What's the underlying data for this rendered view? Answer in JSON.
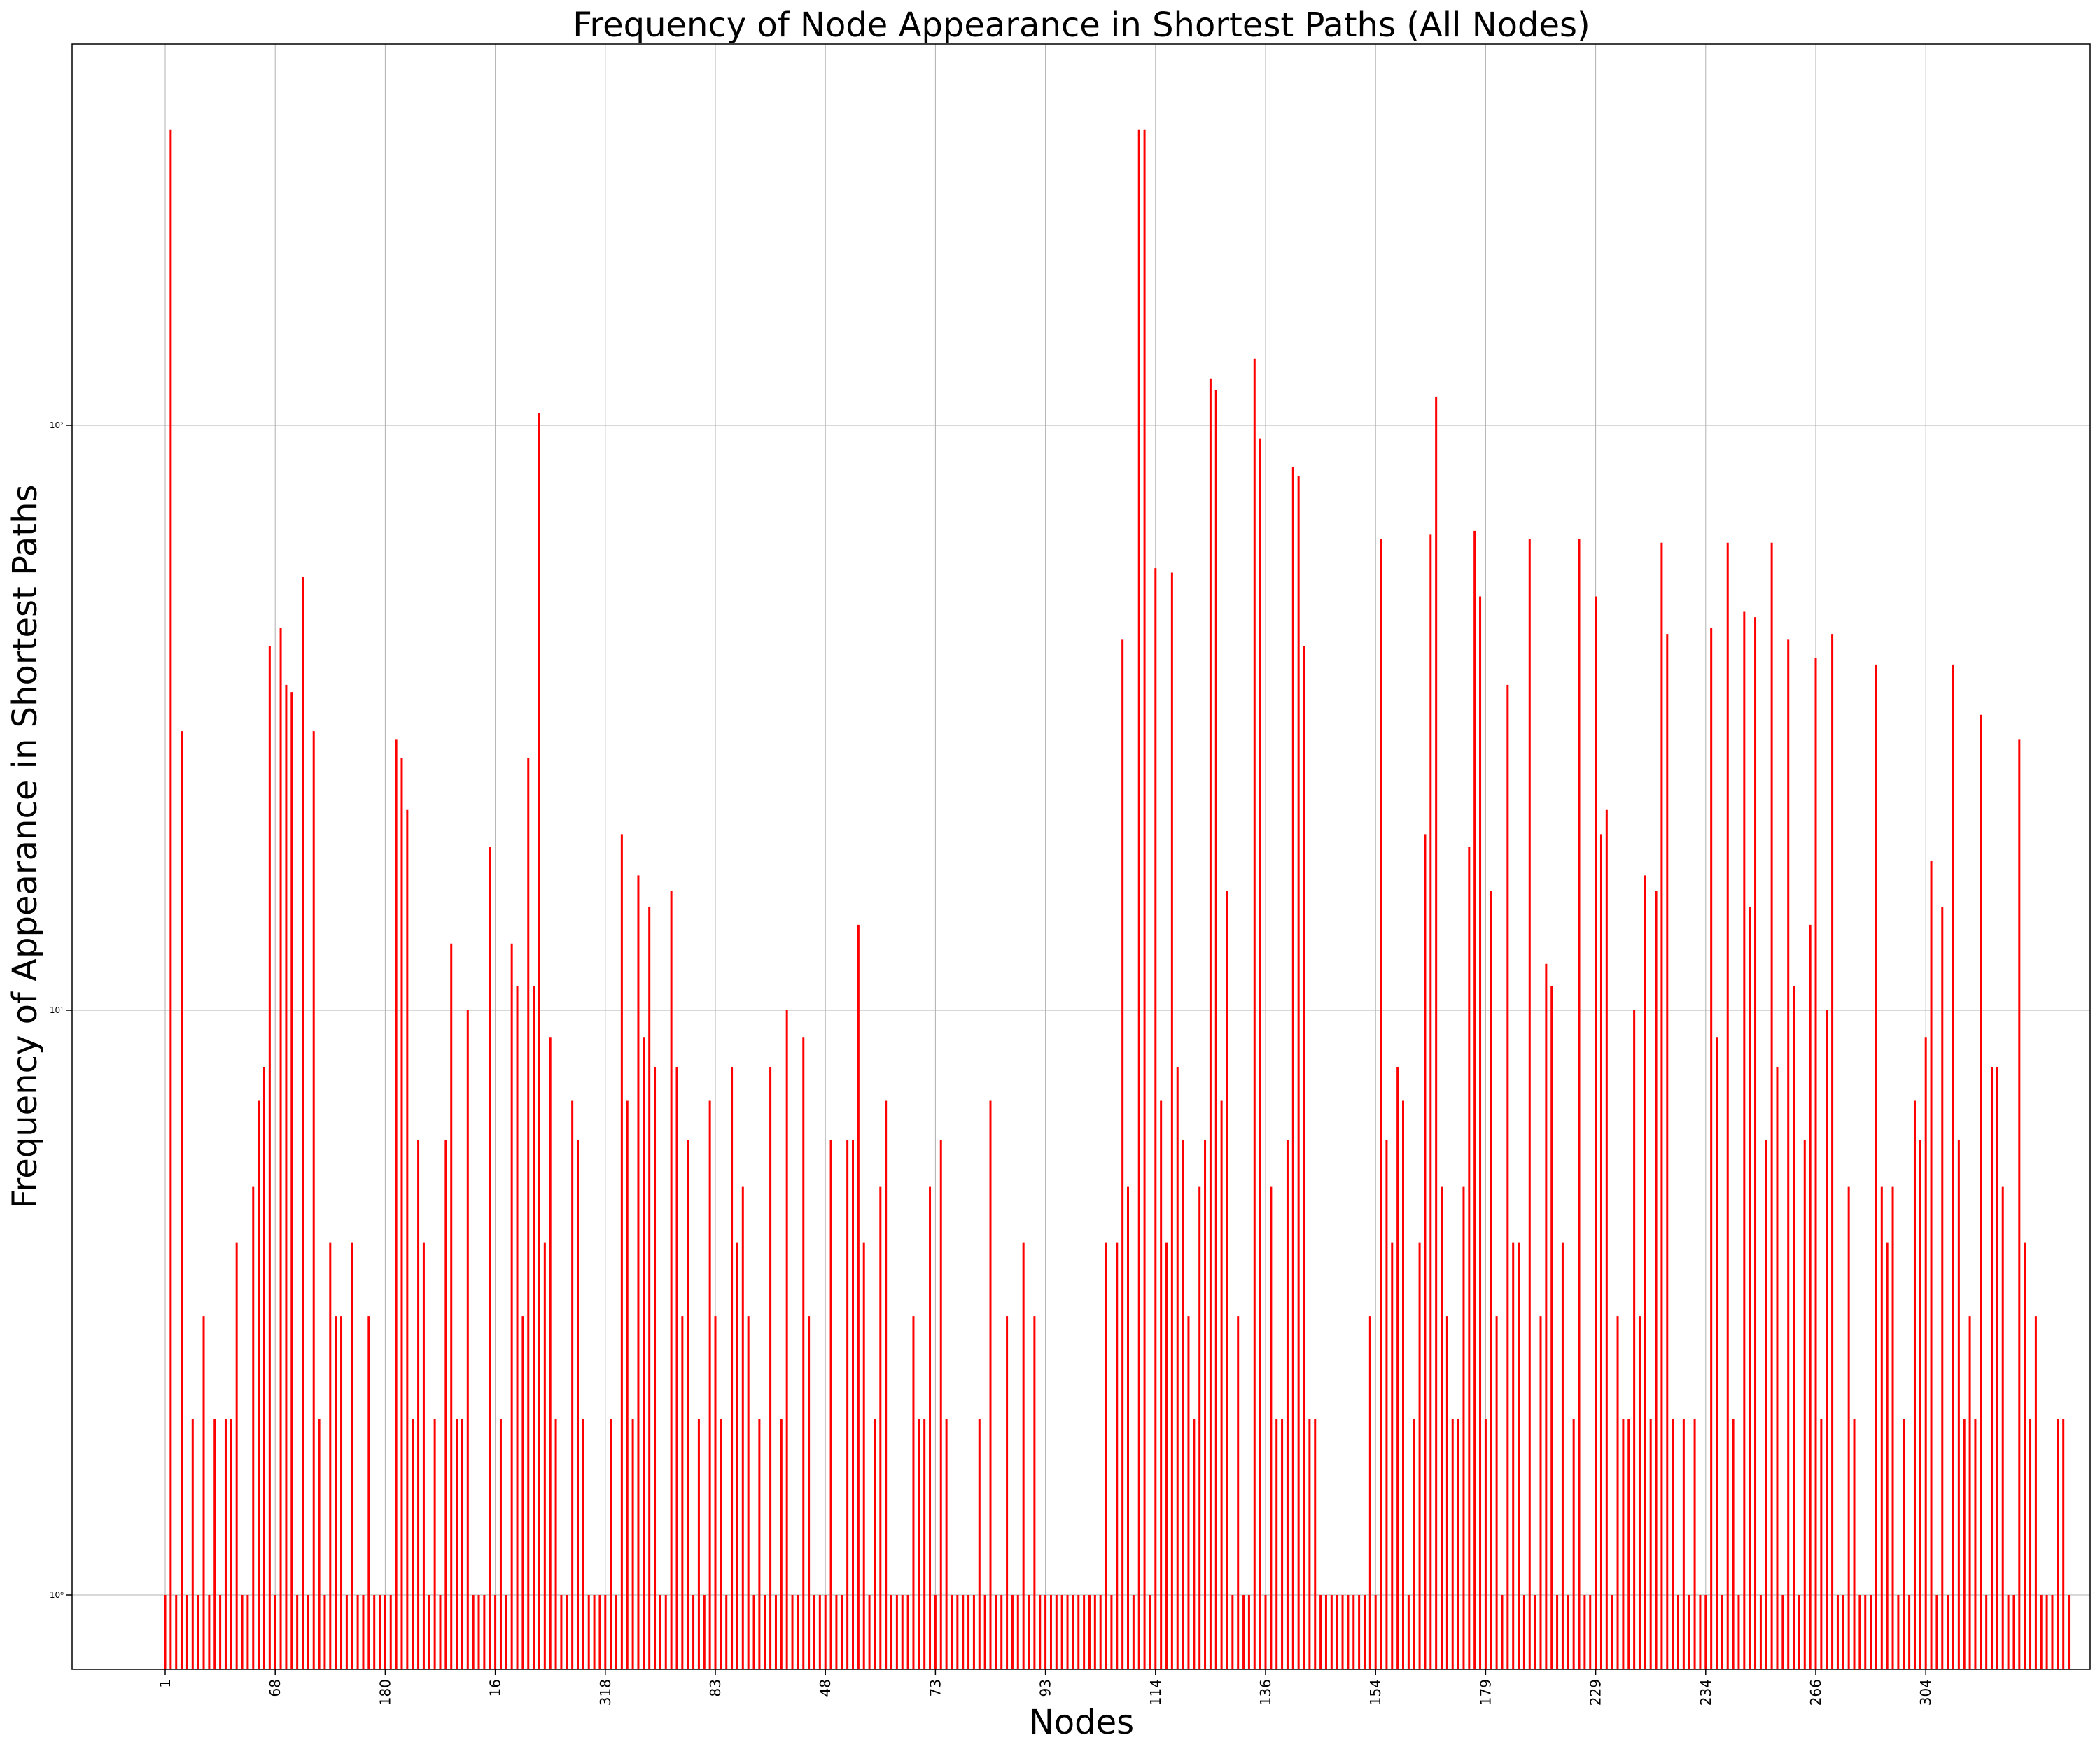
{
  "chart_data": {
    "type": "bar",
    "title": "Frequency of Node Appearance in Shortest Paths (All Nodes)",
    "xlabel": "Nodes",
    "ylabel": "Frequency of Appearance in Shortest Paths",
    "yscale": "log",
    "ylim": [
      0.75,
      450
    ],
    "yticks": [
      1,
      10,
      100
    ],
    "ytick_labels": [
      "10⁰",
      "10¹",
      "10²"
    ],
    "xtick_labels": [
      "1",
      "68",
      "180",
      "16",
      "318",
      "83",
      "48",
      "73",
      "93",
      "114",
      "136",
      "154",
      "179",
      "229",
      "234",
      "266",
      "304"
    ],
    "xtick_step": 20,
    "grid": true,
    "bar_color": "#ff0000",
    "values": [
      1,
      320,
      1,
      30,
      1,
      2,
      1,
      3,
      1,
      2,
      1,
      2,
      2,
      4,
      1,
      1,
      5,
      7,
      8,
      42,
      1,
      45,
      36,
      35,
      1,
      55,
      1,
      30,
      2,
      1,
      4,
      3,
      3,
      1,
      4,
      1,
      1,
      3,
      1,
      1,
      1,
      1,
      29,
      27,
      22,
      2,
      6,
      4,
      1,
      2,
      1,
      6,
      13,
      2,
      2,
      10,
      1,
      1,
      1,
      19,
      1,
      2,
      1,
      13,
      11,
      3,
      27,
      11,
      105,
      4,
      9,
      2,
      1,
      1,
      7,
      6,
      2,
      1,
      1,
      1,
      1,
      2,
      1,
      20,
      7,
      2,
      17,
      9,
      15,
      8,
      1,
      1,
      16,
      8,
      3,
      6,
      1,
      2,
      1,
      7,
      3,
      2,
      1,
      8,
      4,
      5,
      3,
      1,
      2,
      1,
      8,
      1,
      2,
      10,
      1,
      1,
      9,
      3,
      1,
      1,
      1,
      6,
      1,
      1,
      6,
      6,
      14,
      4,
      1,
      2,
      5,
      7,
      1,
      1,
      1,
      1,
      3,
      2,
      2,
      5,
      1,
      6,
      2,
      1,
      1,
      1,
      1,
      1,
      2,
      1,
      7,
      1,
      1,
      3,
      1,
      1,
      4,
      1,
      3,
      1,
      1,
      1,
      1,
      1,
      1,
      1,
      1,
      1,
      1,
      1,
      1,
      4,
      1,
      4,
      43,
      5,
      1,
      320,
      320,
      1,
      57,
      7,
      4,
      56,
      8,
      6,
      3,
      2,
      5,
      6,
      120,
      115,
      7,
      16,
      1,
      3,
      1,
      1,
      130,
      95,
      1,
      5,
      2,
      2,
      6,
      85,
      82,
      42,
      2,
      2,
      1,
      1,
      1,
      1,
      1,
      1,
      1,
      1,
      1,
      3,
      1,
      64,
      6,
      4,
      8,
      7,
      1,
      2,
      4,
      20,
      65,
      112,
      5,
      3,
      2,
      2,
      5,
      19,
      66,
      51,
      2,
      16,
      3,
      1,
      36,
      4,
      4,
      1,
      64,
      1,
      3,
      12,
      11,
      1,
      4,
      1,
      2,
      64,
      1,
      1,
      51,
      20,
      22,
      1,
      3,
      2,
      2,
      10,
      3,
      17,
      2,
      16,
      63,
      44,
      2,
      1,
      2,
      1,
      2,
      1,
      1,
      45,
      9,
      1,
      63,
      2,
      1,
      48,
      15,
      47,
      1,
      6,
      63,
      8,
      1,
      43,
      11,
      1,
      6,
      14,
      40,
      2,
      10,
      44,
      1,
      1,
      5,
      2,
      1,
      1,
      1,
      39,
      5,
      4,
      5,
      1,
      2,
      1,
      7,
      6,
      9,
      18,
      1,
      15,
      1,
      39,
      6,
      2,
      3,
      2,
      32,
      1,
      8,
      8,
      5,
      1,
      1,
      29,
      4,
      2,
      3,
      1,
      1,
      1,
      2,
      2,
      1
    ]
  }
}
